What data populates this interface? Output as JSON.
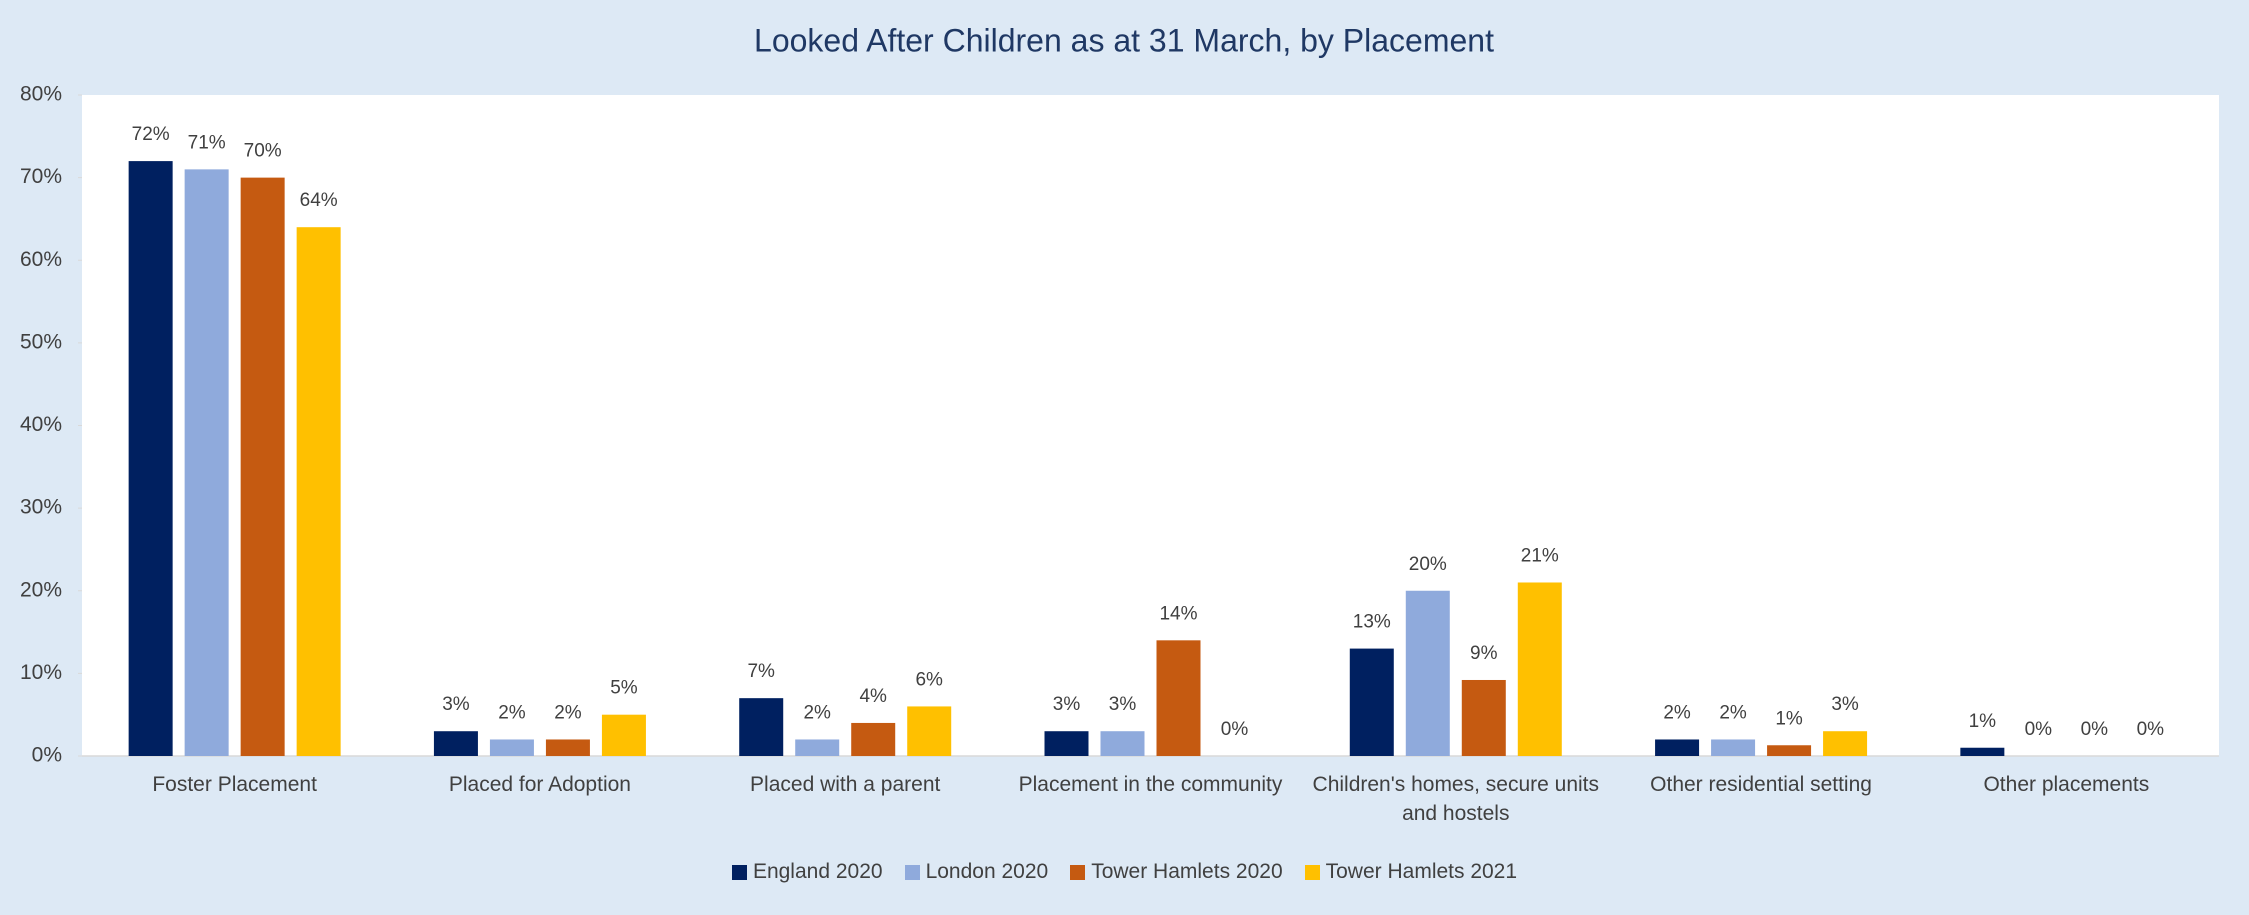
{
  "chart_data": {
    "type": "bar",
    "title": "Looked After Children as at 31 March, by Placement",
    "categories": [
      "Foster Placement",
      "Placed for Adoption",
      "Placed with a parent",
      "Placement in the community",
      "Children's homes, secure units and hostels",
      "Other residential setting",
      "Other placements"
    ],
    "series": [
      {
        "name": "England 2020",
        "color": "#002060",
        "values": [
          72,
          3,
          7,
          3,
          13,
          2,
          1
        ],
        "value_labels": [
          "72%",
          "3%",
          "7%",
          "3%",
          "13%",
          "2%",
          "1%"
        ]
      },
      {
        "name": "London 2020",
        "color": "#8faadc",
        "values": [
          71,
          2,
          2,
          3,
          20,
          2,
          0
        ],
        "value_labels": [
          "71%",
          "2%",
          "2%",
          "3%",
          "20%",
          "2%",
          "0%"
        ]
      },
      {
        "name": "Tower Hamlets 2020",
        "color": "#c55a11",
        "values": [
          70,
          2,
          4,
          14,
          9.2,
          1.3,
          0
        ],
        "value_labels": [
          "70%",
          "2%",
          "4%",
          "14%",
          "9%",
          "1%",
          "0%"
        ]
      },
      {
        "name": "Tower Hamlets 2021",
        "color": "#ffc000",
        "values": [
          64,
          5,
          6,
          0,
          21,
          3,
          0
        ],
        "value_labels": [
          "64%",
          "5%",
          "6%",
          "0%",
          "21%",
          "3%",
          "0%"
        ]
      }
    ],
    "ylim": [
      0,
      80
    ],
    "yticks": [
      {
        "value": 0,
        "label": "0%"
      },
      {
        "value": 10,
        "label": "10%"
      },
      {
        "value": 20,
        "label": "20%"
      },
      {
        "value": 30,
        "label": "30%"
      },
      {
        "value": 40,
        "label": "40%"
      },
      {
        "value": 50,
        "label": "50%"
      },
      {
        "value": 60,
        "label": "60%"
      },
      {
        "value": 70,
        "label": "70%"
      },
      {
        "value": 80,
        "label": "80%"
      }
    ]
  }
}
